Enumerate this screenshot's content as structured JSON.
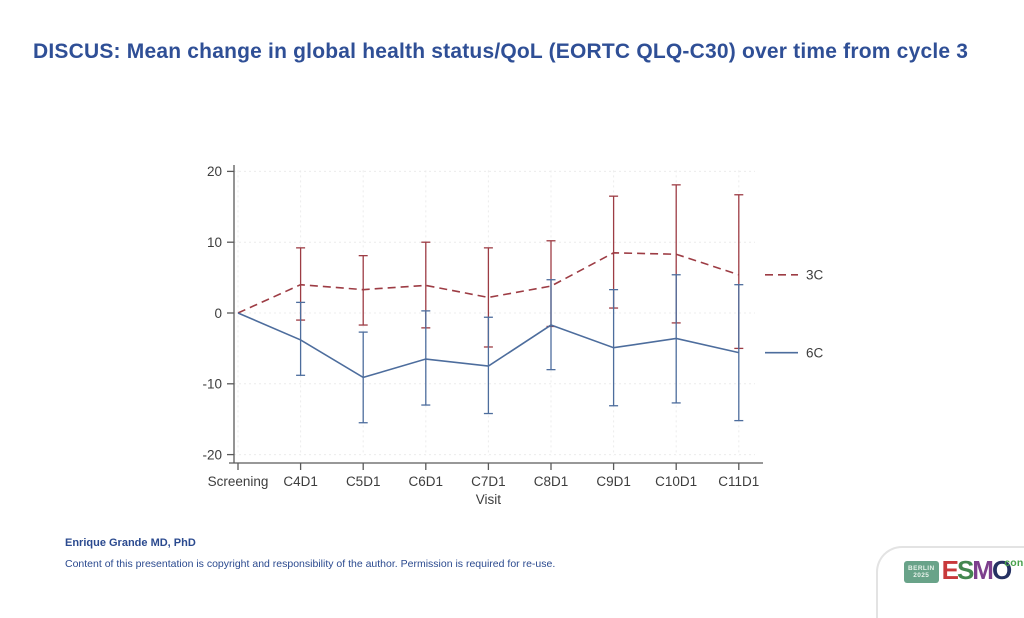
{
  "slide": {
    "title": "DISCUS: Mean change in global health status/QoL (EORTC QLQ-C30) over time from cycle 3",
    "title_color": "#2f4f96",
    "background": "#ffffff"
  },
  "footer": {
    "author": "Enrique Grande MD, PhD",
    "copyright": "Content of this presentation is copyright and responsibility of the author. Permission is required for re-use."
  },
  "logo": {
    "city": "BERLIN",
    "year": "2025",
    "badge_color": "#69a389",
    "letters": [
      {
        "ch": "E",
        "color": "#c8393b"
      },
      {
        "ch": "S",
        "color": "#43874f"
      },
      {
        "ch": "M",
        "color": "#7d3f8d"
      },
      {
        "ch": "O",
        "color": "#253162"
      }
    ],
    "suffix": "congress",
    "suffix_color": "#48a14c"
  },
  "chart_data": {
    "type": "line",
    "x": [
      "Screening",
      "C4D1",
      "C5D1",
      "C6D1",
      "C7D1",
      "C8D1",
      "C9D1",
      "C10D1",
      "C11D1"
    ],
    "xlabel": "Visit",
    "ylabel": "",
    "ylim": [
      -20,
      20
    ],
    "yticks": [
      20,
      10,
      0,
      -10,
      -20
    ],
    "grid": true,
    "legend_position": "right-of-plot",
    "error_bars": true,
    "series": [
      {
        "name": "3C",
        "style": "dashed",
        "color": "#9d3c44",
        "values": [
          0,
          4.0,
          3.3,
          3.9,
          2.2,
          3.8,
          8.5,
          8.3,
          5.4
        ],
        "ci_high": [
          null,
          9.2,
          8.1,
          10.0,
          9.2,
          10.2,
          16.5,
          18.1,
          16.7
        ],
        "ci_low": [
          null,
          -1.0,
          -1.7,
          -2.1,
          -4.8,
          -1.9,
          0.7,
          -1.4,
          -5.0
        ]
      },
      {
        "name": "6C",
        "style": "solid",
        "color": "#4d6d9d",
        "values": [
          0,
          -3.8,
          -9.1,
          -6.5,
          -7.5,
          -1.7,
          -4.9,
          -3.6,
          -5.6
        ],
        "ci_high": [
          null,
          1.5,
          -2.7,
          0.3,
          -0.6,
          4.7,
          3.3,
          5.4,
          4.0
        ],
        "ci_low": [
          null,
          -8.8,
          -15.5,
          -13.0,
          -14.2,
          -8.0,
          -13.1,
          -12.7,
          -15.2
        ]
      }
    ],
    "axis_text_color": "#3d3d3d",
    "axis_line_color": "#5a5a5a",
    "grid_color": "#ececec"
  }
}
